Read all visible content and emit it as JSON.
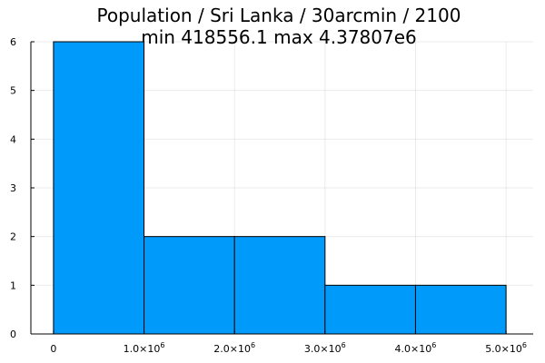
{
  "chart_data": {
    "type": "bar",
    "title": "Population / Sri Lanka / 30arcmin / 2100",
    "subtitle": "min 418556.1  max 4.37807e6",
    "bins": [
      {
        "x0": 0,
        "x1": 1000000,
        "count": 6
      },
      {
        "x0": 1000000,
        "x1": 2000000,
        "count": 2
      },
      {
        "x0": 2000000,
        "x1": 3000000,
        "count": 2
      },
      {
        "x0": 3000000,
        "x1": 4000000,
        "count": 1
      },
      {
        "x0": 4000000,
        "x1": 5000000,
        "count": 1
      }
    ],
    "xlim": [
      -250000,
      5300000
    ],
    "ylim": [
      0,
      6
    ],
    "xticks": [
      {
        "value": 0,
        "mantissa": "0",
        "exp": ""
      },
      {
        "value": 1000000,
        "mantissa": "1.0×10",
        "exp": "6"
      },
      {
        "value": 2000000,
        "mantissa": "2.0×10",
        "exp": "6"
      },
      {
        "value": 3000000,
        "mantissa": "3.0×10",
        "exp": "6"
      },
      {
        "value": 4000000,
        "mantissa": "4.0×10",
        "exp": "6"
      },
      {
        "value": 5000000,
        "mantissa": "5.0×10",
        "exp": "6"
      }
    ],
    "yticks": [
      0,
      1,
      2,
      3,
      4,
      5,
      6
    ],
    "grid": true,
    "bar_color": "#009AFA",
    "xlabel": "",
    "ylabel": ""
  }
}
